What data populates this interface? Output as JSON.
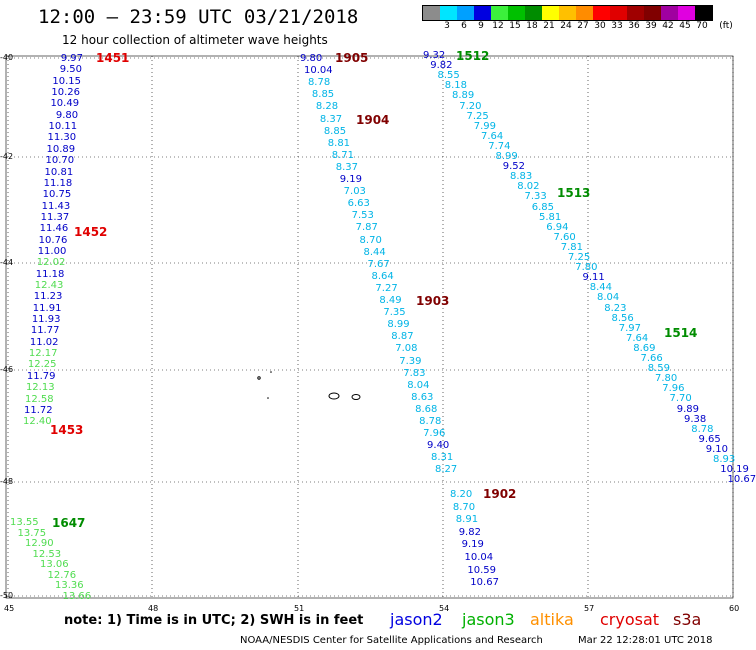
{
  "header": {
    "title": "12:00 – 23:59 UTC 03/21/2018",
    "subtitle": "12 hour collection of altimeter wave heights"
  },
  "legend": {
    "unit": "(ft)",
    "entries": [
      {
        "label": "",
        "color": "#8c8c8c"
      },
      {
        "label": "3",
        "color": "#00e5ff"
      },
      {
        "label": "6",
        "color": "#00a0ff"
      },
      {
        "label": "9",
        "color": "#0000e0"
      },
      {
        "label": "12",
        "color": "#3cf03c"
      },
      {
        "label": "15",
        "color": "#00c000"
      },
      {
        "label": "18",
        "color": "#008c00"
      },
      {
        "label": "21",
        "color": "#ffff00"
      },
      {
        "label": "24",
        "color": "#ffc000"
      },
      {
        "label": "27",
        "color": "#ff8c00"
      },
      {
        "label": "30",
        "color": "#ff0000"
      },
      {
        "label": "33",
        "color": "#e00000"
      },
      {
        "label": "36",
        "color": "#a00000"
      },
      {
        "label": "39",
        "color": "#800000"
      },
      {
        "label": "42",
        "color": "#a000a0"
      },
      {
        "label": "45",
        "color": "#e000e0"
      },
      {
        "label": "70",
        "color": "#000000"
      }
    ]
  },
  "axes": {
    "lat_labels": [
      "-40",
      "-42",
      "-44",
      "-46",
      "-48",
      "-50"
    ],
    "lon_labels": [
      "45",
      "48",
      "51",
      "54",
      "57",
      "60"
    ]
  },
  "colors": {
    "jason2": "#0000e0",
    "jason3": "#00b000",
    "altika": "#ff9000",
    "cryosat": "#e00000",
    "s3a": "#800000",
    "cyan": "#00b4e6",
    "blue": "#0000c8",
    "lightgreen": "#50dc50"
  },
  "passes": [
    {
      "id": "1451",
      "color": "#e00000"
    },
    {
      "id": "1452",
      "color": "#e00000"
    },
    {
      "id": "1453",
      "color": "#e00000"
    },
    {
      "id": "1647",
      "color": "#008c00"
    },
    {
      "id": "1905",
      "color": "#800000"
    },
    {
      "id": "1904",
      "color": "#800000"
    },
    {
      "id": "1903",
      "color": "#800000"
    },
    {
      "id": "1902",
      "color": "#800000"
    },
    {
      "id": "1512",
      "color": "#008c00"
    },
    {
      "id": "1513",
      "color": "#008c00"
    },
    {
      "id": "1514",
      "color": "#008c00"
    }
  ],
  "track_values": {
    "west": [
      {
        "v": "9.97",
        "c": "blue"
      },
      {
        "v": "9.50",
        "c": "blue"
      },
      {
        "v": "10.15",
        "c": "blue"
      },
      {
        "v": "10.26",
        "c": "blue"
      },
      {
        "v": "10.49",
        "c": "blue"
      },
      {
        "v": "9.80",
        "c": "blue"
      },
      {
        "v": "10.11",
        "c": "blue"
      },
      {
        "v": "11.30",
        "c": "blue"
      },
      {
        "v": "10.89",
        "c": "blue"
      },
      {
        "v": "10.70",
        "c": "blue"
      },
      {
        "v": "10.81",
        "c": "blue"
      },
      {
        "v": "11.18",
        "c": "blue"
      },
      {
        "v": "10.75",
        "c": "blue"
      },
      {
        "v": "11.43",
        "c": "blue"
      },
      {
        "v": "11.37",
        "c": "blue"
      },
      {
        "v": "11.46",
        "c": "blue"
      },
      {
        "v": "10.76",
        "c": "blue"
      },
      {
        "v": "11.00",
        "c": "blue"
      },
      {
        "v": "12.02",
        "c": "lightgreen"
      },
      {
        "v": "11.18",
        "c": "blue"
      },
      {
        "v": "12.43",
        "c": "lightgreen"
      },
      {
        "v": "11.23",
        "c": "blue"
      },
      {
        "v": "11.91",
        "c": "blue"
      },
      {
        "v": "11.93",
        "c": "blue"
      },
      {
        "v": "11.77",
        "c": "blue"
      },
      {
        "v": "11.02",
        "c": "blue"
      },
      {
        "v": "12.17",
        "c": "lightgreen"
      },
      {
        "v": "12.25",
        "c": "lightgreen"
      },
      {
        "v": "11.79",
        "c": "blue"
      },
      {
        "v": "12.13",
        "c": "lightgreen"
      },
      {
        "v": "12.58",
        "c": "lightgreen"
      },
      {
        "v": "11.72",
        "c": "blue"
      },
      {
        "v": "12.40",
        "c": "lightgreen"
      }
    ],
    "sw": [
      {
        "v": "13.55",
        "c": "lightgreen"
      },
      {
        "v": "13.75",
        "c": "lightgreen"
      },
      {
        "v": "12.90",
        "c": "lightgreen"
      },
      {
        "v": "12.53",
        "c": "lightgreen"
      },
      {
        "v": "13.06",
        "c": "lightgreen"
      },
      {
        "v": "12.76",
        "c": "lightgreen"
      },
      {
        "v": "13.36",
        "c": "lightgreen"
      },
      {
        "v": "13.66",
        "c": "lightgreen"
      }
    ],
    "middle": [
      {
        "v": "9.80",
        "c": "blue"
      },
      {
        "v": "10.04",
        "c": "blue"
      },
      {
        "v": "8.78",
        "c": "cyan"
      },
      {
        "v": "8.85",
        "c": "cyan"
      },
      {
        "v": "8.28",
        "c": "cyan"
      },
      {
        "v": "8.37",
        "c": "cyan"
      },
      {
        "v": "8.85",
        "c": "cyan"
      },
      {
        "v": "8.81",
        "c": "cyan"
      },
      {
        "v": "8.71",
        "c": "cyan"
      },
      {
        "v": "8.37",
        "c": "cyan"
      },
      {
        "v": "9.19",
        "c": "blue"
      },
      {
        "v": "7.03",
        "c": "cyan"
      },
      {
        "v": "6.63",
        "c": "cyan"
      },
      {
        "v": "7.53",
        "c": "cyan"
      },
      {
        "v": "7.87",
        "c": "cyan"
      },
      {
        "v": "8.70",
        "c": "cyan"
      },
      {
        "v": "8.44",
        "c": "cyan"
      },
      {
        "v": "7.67",
        "c": "cyan"
      },
      {
        "v": "8.64",
        "c": "cyan"
      },
      {
        "v": "7.27",
        "c": "cyan"
      },
      {
        "v": "8.49",
        "c": "cyan"
      },
      {
        "v": "7.35",
        "c": "cyan"
      },
      {
        "v": "8.99",
        "c": "cyan"
      },
      {
        "v": "8.87",
        "c": "cyan"
      },
      {
        "v": "7.08",
        "c": "cyan"
      },
      {
        "v": "7.39",
        "c": "cyan"
      },
      {
        "v": "7.83",
        "c": "cyan"
      },
      {
        "v": "8.04",
        "c": "cyan"
      },
      {
        "v": "8.63",
        "c": "cyan"
      },
      {
        "v": "8.68",
        "c": "cyan"
      },
      {
        "v": "8.78",
        "c": "cyan"
      },
      {
        "v": "7.96",
        "c": "cyan"
      },
      {
        "v": "9.40",
        "c": "blue"
      },
      {
        "v": "8.31",
        "c": "cyan"
      },
      {
        "v": "8.27",
        "c": "cyan"
      }
    ],
    "south": [
      {
        "v": "8.20",
        "c": "cyan"
      },
      {
        "v": "8.70",
        "c": "cyan"
      },
      {
        "v": "8.91",
        "c": "cyan"
      },
      {
        "v": "9.82",
        "c": "blue"
      },
      {
        "v": "9.19",
        "c": "blue"
      },
      {
        "v": "10.04",
        "c": "blue"
      },
      {
        "v": "10.59",
        "c": "blue"
      },
      {
        "v": "10.67",
        "c": "blue"
      }
    ],
    "east": [
      {
        "v": "9.32",
        "c": "blue"
      },
      {
        "v": "9.82",
        "c": "blue"
      },
      {
        "v": "8.55",
        "c": "cyan"
      },
      {
        "v": "8.18",
        "c": "cyan"
      },
      {
        "v": "8.89",
        "c": "cyan"
      },
      {
        "v": "7.20",
        "c": "cyan"
      },
      {
        "v": "7.25",
        "c": "cyan"
      },
      {
        "v": "7.99",
        "c": "cyan"
      },
      {
        "v": "7.64",
        "c": "cyan"
      },
      {
        "v": "7.74",
        "c": "cyan"
      },
      {
        "v": "8.99",
        "c": "cyan"
      },
      {
        "v": "9.52",
        "c": "blue"
      },
      {
        "v": "8.83",
        "c": "cyan"
      },
      {
        "v": "8.02",
        "c": "cyan"
      },
      {
        "v": "7.33",
        "c": "cyan"
      },
      {
        "v": "6.85",
        "c": "cyan"
      },
      {
        "v": "5.81",
        "c": "cyan"
      },
      {
        "v": "6.94",
        "c": "cyan"
      },
      {
        "v": "7.60",
        "c": "cyan"
      },
      {
        "v": "7.81",
        "c": "cyan"
      },
      {
        "v": "7.25",
        "c": "cyan"
      },
      {
        "v": "7.80",
        "c": "cyan"
      },
      {
        "v": "9.11",
        "c": "blue"
      },
      {
        "v": "8.44",
        "c": "cyan"
      },
      {
        "v": "8.04",
        "c": "cyan"
      },
      {
        "v": "8.23",
        "c": "cyan"
      },
      {
        "v": "8.56",
        "c": "cyan"
      },
      {
        "v": "7.97",
        "c": "cyan"
      },
      {
        "v": "7.64",
        "c": "cyan"
      },
      {
        "v": "8.69",
        "c": "cyan"
      },
      {
        "v": "7.66",
        "c": "cyan"
      },
      {
        "v": "8.59",
        "c": "cyan"
      },
      {
        "v": "7.80",
        "c": "cyan"
      },
      {
        "v": "7.96",
        "c": "cyan"
      },
      {
        "v": "7.70",
        "c": "cyan"
      },
      {
        "v": "9.89",
        "c": "blue"
      },
      {
        "v": "9.38",
        "c": "blue"
      },
      {
        "v": "8.78",
        "c": "cyan"
      },
      {
        "v": "9.65",
        "c": "blue"
      },
      {
        "v": "9.10",
        "c": "blue"
      },
      {
        "v": "8.93",
        "c": "cyan"
      },
      {
        "v": "10.19",
        "c": "blue"
      },
      {
        "v": "10.67",
        "c": "blue"
      }
    ]
  },
  "footer": {
    "note": "note:  1) Time is in UTC;  2) SWH is in feet",
    "satellites": [
      {
        "name": "jason2",
        "color": "#0000e0"
      },
      {
        "name": "jason3",
        "color": "#00b000"
      },
      {
        "name": "altika",
        "color": "#ff9000"
      },
      {
        "name": "cryosat",
        "color": "#e00000"
      },
      {
        "name": "s3a",
        "color": "#800000"
      }
    ],
    "credit": "NOAA/NESDIS Center for Satellite Applications and Research",
    "timestamp": "Mar 22 12:28:01 UTC 2018"
  }
}
